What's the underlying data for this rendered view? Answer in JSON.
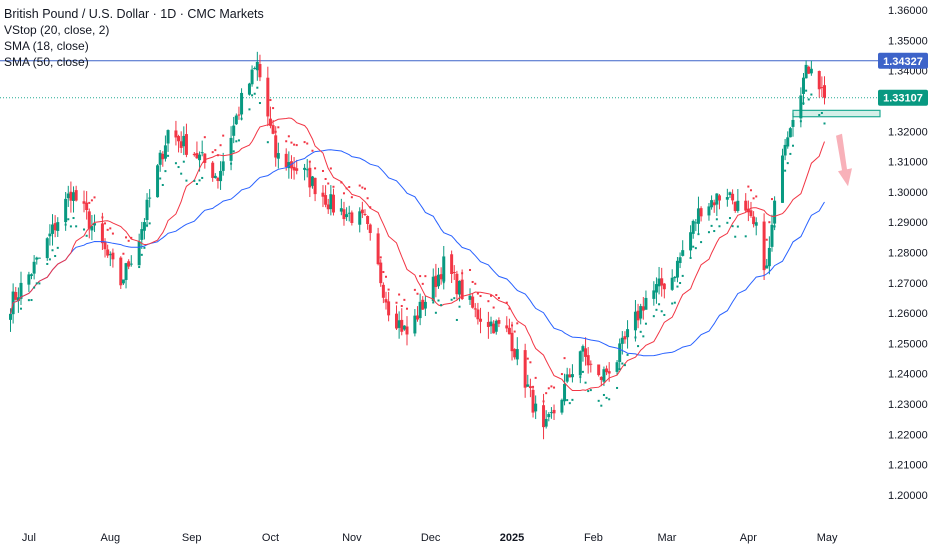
{
  "legend": {
    "title": "British Pound / U.S. Dollar · 1D · CMC Markets",
    "vstop": "VStop (20, close, 2)",
    "sma18": "SMA (18, close)",
    "sma50": "SMA (50, close)"
  },
  "colors": {
    "up": "#089981",
    "down": "#f23645",
    "sma18": "#f23645",
    "sma50": "#2962ff",
    "resistance": "#3d63c9",
    "current_line": "#22ab94",
    "support_zone_fill": "#d4efe8",
    "support_zone_border": "#22ab94",
    "arrow": "#f7a9b1",
    "axis_text": "#131722"
  },
  "price_tags": {
    "resistance": "1.34327",
    "last": "1.33107"
  },
  "chart_data": {
    "type": "candlestick",
    "symbol": "GBPUSD",
    "timeframe": "1D",
    "y_axis": {
      "range": [
        1.195,
        1.362
      ],
      "ticks": [
        "1.36000",
        "1.35000",
        "1.34000",
        "1.33000",
        "1.32000",
        "1.31000",
        "1.30000",
        "1.29000",
        "1.28000",
        "1.27000",
        "1.26000",
        "1.25000",
        "1.24000",
        "1.23000",
        "1.22000",
        "1.21000",
        "1.20000"
      ]
    },
    "x_axis": {
      "labels": [
        {
          "text": "Jul",
          "date": "2024-07-01",
          "bold": false
        },
        {
          "text": "Aug",
          "date": "2024-08-01",
          "bold": false
        },
        {
          "text": "Sep",
          "date": "2024-09-01",
          "bold": false
        },
        {
          "text": "Oct",
          "date": "2024-10-01",
          "bold": false
        },
        {
          "text": "Nov",
          "date": "2024-11-01",
          "bold": false
        },
        {
          "text": "Dec",
          "date": "2024-12-01",
          "bold": false
        },
        {
          "text": "2025",
          "date": "2025-01-01",
          "bold": true
        },
        {
          "text": "Feb",
          "date": "2025-02-01",
          "bold": false
        },
        {
          "text": "Mar",
          "date": "2025-03-01",
          "bold": false
        },
        {
          "text": "Apr",
          "date": "2025-04-01",
          "bold": false
        },
        {
          "text": "May",
          "date": "2025-05-01",
          "bold": false
        }
      ]
    },
    "anchors": [
      {
        "date": "2024-06-24",
        "close": 1.263
      },
      {
        "date": "2024-07-05",
        "close": 1.278
      },
      {
        "date": "2024-07-17",
        "close": 1.3
      },
      {
        "date": "2024-07-23",
        "close": 1.292
      },
      {
        "date": "2024-08-05",
        "close": 1.27
      },
      {
        "date": "2024-08-12",
        "close": 1.285
      },
      {
        "date": "2024-08-23",
        "close": 1.32
      },
      {
        "date": "2024-09-02",
        "close": 1.313
      },
      {
        "date": "2024-09-11",
        "close": 1.305
      },
      {
        "date": "2024-09-20",
        "close": 1.33
      },
      {
        "date": "2024-09-26",
        "close": 1.342
      },
      {
        "date": "2024-10-03",
        "close": 1.312
      },
      {
        "date": "2024-10-14",
        "close": 1.306
      },
      {
        "date": "2024-10-25",
        "close": 1.295
      },
      {
        "date": "2024-11-06",
        "close": 1.29
      },
      {
        "date": "2024-11-15",
        "close": 1.262
      },
      {
        "date": "2024-11-22",
        "close": 1.253
      },
      {
        "date": "2024-12-06",
        "close": 1.276
      },
      {
        "date": "2024-12-18",
        "close": 1.26
      },
      {
        "date": "2024-12-31",
        "close": 1.253
      },
      {
        "date": "2025-01-13",
        "close": 1.22
      },
      {
        "date": "2025-01-20",
        "close": 1.233
      },
      {
        "date": "2025-01-27",
        "close": 1.248
      },
      {
        "date": "2025-02-03",
        "close": 1.238
      },
      {
        "date": "2025-02-10",
        "close": 1.245
      },
      {
        "date": "2025-02-21",
        "close": 1.265
      },
      {
        "date": "2025-03-03",
        "close": 1.272
      },
      {
        "date": "2025-03-14",
        "close": 1.295
      },
      {
        "date": "2025-03-24",
        "close": 1.3
      },
      {
        "date": "2025-04-04",
        "close": 1.287
      },
      {
        "date": "2025-04-08",
        "close": 1.274
      },
      {
        "date": "2025-04-14",
        "close": 1.315
      },
      {
        "date": "2025-04-21",
        "close": 1.335
      },
      {
        "date": "2025-04-25",
        "close": 1.343
      },
      {
        "date": "2025-04-30",
        "close": 1.331
      }
    ],
    "levels": {
      "resistance": 1.34327,
      "last": 1.33107,
      "support_zone": [
        1.3248,
        1.3269
      ]
    },
    "projection": {
      "from": 1.3185,
      "to": 1.3045
    },
    "sma_window_18": 18,
    "sma_window_50": 50
  }
}
